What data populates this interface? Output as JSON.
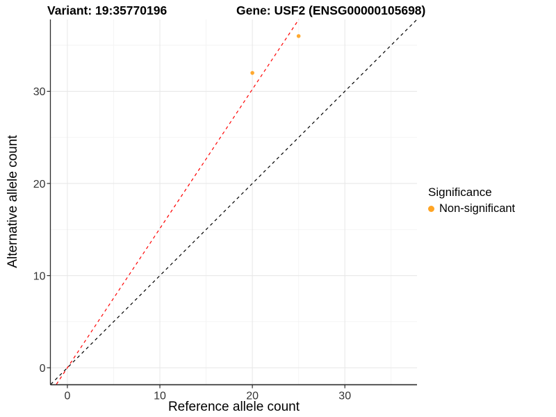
{
  "chart_data": {
    "type": "scatter",
    "titles": {
      "left": "Variant: 19:35770196",
      "right": "Gene: USF2 (ENSG00000105698)"
    },
    "xlabel": "Reference allele count",
    "ylabel": "Alternative allele count",
    "xlim": [
      -1.8,
      37.8
    ],
    "ylim": [
      -1.8,
      37.8
    ],
    "x_major_ticks": [
      0,
      10,
      20,
      30
    ],
    "x_minor_ticks": [
      5,
      15,
      25,
      35
    ],
    "y_major_ticks": [
      0,
      10,
      20,
      30
    ],
    "y_minor_ticks": [
      5,
      15,
      25,
      35
    ],
    "grid": {
      "major": true,
      "minor": true
    },
    "points": [
      {
        "x": 20,
        "y": 32,
        "series": "Non-significant"
      },
      {
        "x": 25,
        "y": 36,
        "series": "Non-significant"
      }
    ],
    "point_style": {
      "color": "#FFA424",
      "radius": 2.8
    },
    "lines": [
      {
        "name": "identity-line",
        "slope": 1,
        "intercept": 0,
        "color": "#000000",
        "style": "dashed"
      },
      {
        "name": "fit-line",
        "slope": 1.511,
        "intercept": 0,
        "color": "#FF0000",
        "style": "dashed"
      }
    ],
    "legend": {
      "title": "Significance",
      "position": "right",
      "entries": [
        {
          "label": "Non-significant",
          "color": "#FFA424"
        }
      ]
    },
    "colors": {
      "grid_major": "#E8E8E8",
      "grid_minor": "#F3F3F3",
      "axis_line": "#2B2B2B",
      "tick_text": "#333333"
    }
  }
}
